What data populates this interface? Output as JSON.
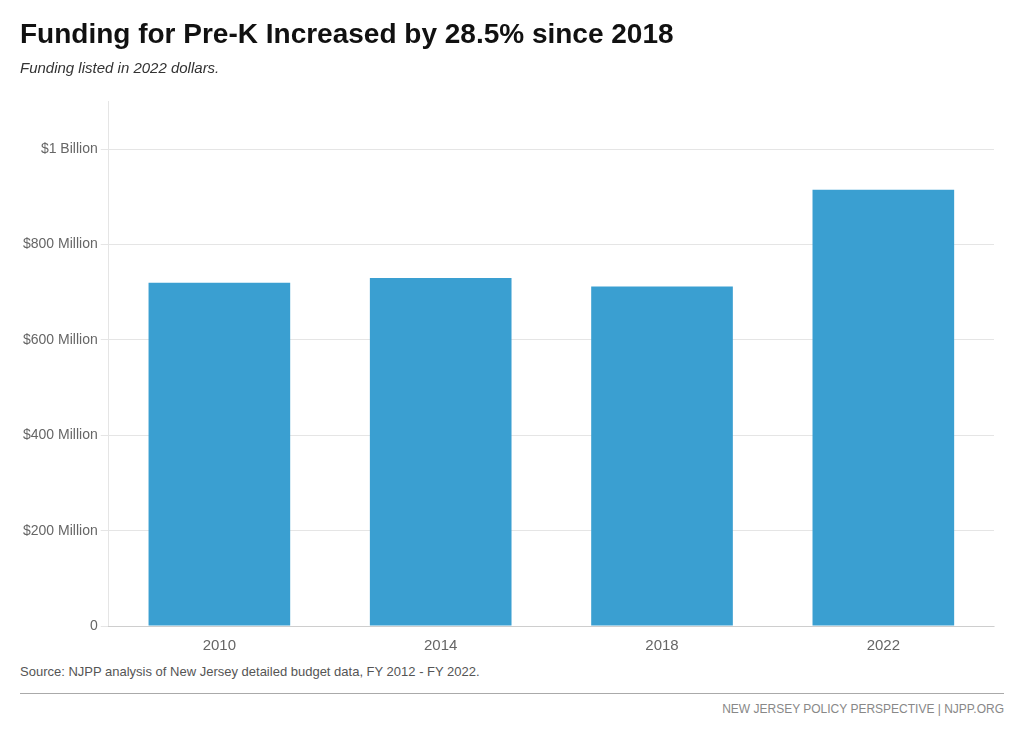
{
  "chart_data": {
    "type": "bar",
    "title": "Funding for Pre-K Increased by 28.5% since 2018",
    "subtitle": "Funding listed in 2022 dollars.",
    "annotations": [
      "Source: NJPP analysis of New Jersey detailed budget data, FY 2012 - FY 2022.",
      "NEW JERSEY POLICY PERSPECTIVE | NJPP.ORG"
    ],
    "categories": [
      "2010",
      "2014",
      "2018",
      "2022"
    ],
    "values": [
      720000000,
      730000000,
      712000000,
      915000000
    ],
    "color": "#3a9fd1",
    "ylim": [
      0,
      1100000000
    ],
    "yticks": [
      0,
      {
        "value": 200000000,
        "label": "$200 Million"
      },
      {
        "value": 400000000,
        "label": "$400 Million"
      },
      {
        "value": 600000000,
        "label": "$600 Million"
      },
      {
        "value": 800000000,
        "label": "$800 Million"
      },
      {
        "value": 1000000000,
        "label": "$1 Billion"
      }
    ],
    "grid": true
  }
}
